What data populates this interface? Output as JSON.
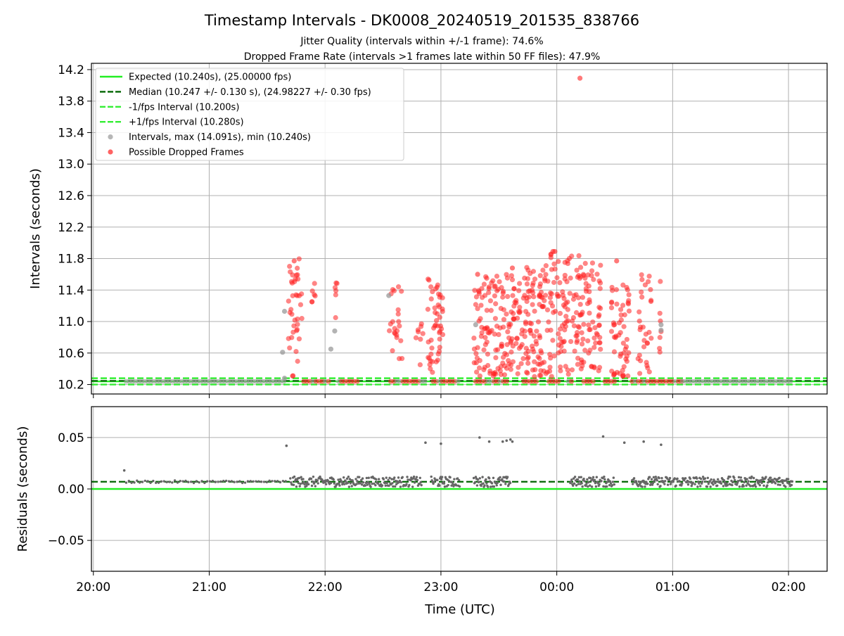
{
  "figure": {
    "title": "Timestamp Intervals - DK0008_20240519_201535_838766",
    "subtitle_1": "Jitter Quality (intervals within +/-1 frame): 74.6%",
    "subtitle_2": "Dropped Frame Rate (intervals >1 frames late within 50 FF files): 47.9%",
    "xlabel": "Time (UTC)"
  },
  "colors": {
    "expected": "#22ee22",
    "median": "#006400",
    "fps_bounds": "#33ee33",
    "intervals": "#999999",
    "dropped": "#ff2020",
    "residuals": "#666666",
    "grid": "#b0b0b0"
  },
  "chart_data": [
    {
      "type": "scatter",
      "panel": "top",
      "ylabel": "Intervals (seconds)",
      "xlim": [
        "20:00",
        "02:20"
      ],
      "ylim": [
        10.08,
        14.28
      ],
      "x_ticks": [
        "20:00",
        "21:00",
        "22:00",
        "23:00",
        "00:00",
        "01:00",
        "02:00"
      ],
      "y_ticks": [
        10.2,
        10.6,
        11.0,
        11.4,
        11.8,
        12.2,
        12.6,
        13.0,
        13.4,
        13.8,
        14.2
      ],
      "y_tick_labels": [
        "10.2",
        "10.6",
        "11.0",
        "11.4",
        "11.8",
        "12.2",
        "12.6",
        "13.0",
        "13.4",
        "13.8",
        "14.2"
      ],
      "grid": true,
      "legend_position": "top-left",
      "legend": [
        {
          "label": "Expected (10.240s), (25.00000 fps)",
          "style": "solid",
          "color_key": "expected"
        },
        {
          "label": "Median (10.247 +/- 0.130 s), (24.98227 +/- 0.30 fps)",
          "style": "dashed",
          "color_key": "median"
        },
        {
          "label": "-1/fps Interval (10.200s)",
          "style": "dashed",
          "color_key": "fps_bounds"
        },
        {
          "label": "+1/fps Interval (10.280s)",
          "style": "dashed",
          "color_key": "fps_bounds"
        },
        {
          "label": "Intervals, max (14.091s), min (10.240s)",
          "style": "marker",
          "color_key": "intervals"
        },
        {
          "label": "Possible Dropped Frames",
          "style": "marker",
          "color_key": "dropped"
        }
      ],
      "reference_lines": {
        "expected": 10.24,
        "median": 10.247,
        "minus_1fps": 10.2,
        "plus_1fps": 10.28
      },
      "baseline_interval": 10.24,
      "baseline_spans": [
        [
          "20:17",
          "21:40"
        ],
        [
          "21:49",
          "22:02"
        ],
        [
          "22:07",
          "22:18"
        ],
        [
          "22:34",
          "22:52"
        ],
        [
          "22:56",
          "23:10"
        ],
        [
          "23:18",
          "23:34"
        ],
        [
          "23:43",
          "23:50"
        ],
        [
          "23:56",
          "00:01"
        ],
        [
          "00:06",
          "00:08"
        ],
        [
          "00:14",
          "00:19"
        ],
        [
          "00:25",
          "00:31"
        ],
        [
          "00:39",
          "01:05"
        ],
        [
          "01:05",
          "02:02"
        ]
      ],
      "dropped_clusters": [
        {
          "start": "21:41",
          "end": "21:48",
          "ymin": 10.3,
          "ymax": 11.8,
          "count": 38
        },
        {
          "start": "21:53",
          "end": "21:55",
          "ymin": 11.2,
          "ymax": 11.6,
          "count": 6
        },
        {
          "start": "22:05",
          "end": "22:07",
          "ymin": 10.9,
          "ymax": 11.5,
          "count": 6
        },
        {
          "start": "22:33",
          "end": "22:40",
          "ymin": 10.5,
          "ymax": 11.45,
          "count": 22
        },
        {
          "start": "22:47",
          "end": "22:51",
          "ymin": 10.4,
          "ymax": 11.0,
          "count": 8
        },
        {
          "start": "22:53",
          "end": "23:01",
          "ymin": 10.35,
          "ymax": 11.55,
          "count": 48
        },
        {
          "start": "23:17",
          "end": "23:36",
          "ymin": 10.3,
          "ymax": 11.6,
          "count": 110
        },
        {
          "start": "23:36",
          "end": "23:53",
          "ymin": 10.3,
          "ymax": 11.7,
          "count": 120
        },
        {
          "start": "23:53",
          "end": "00:12",
          "ymin": 10.3,
          "ymax": 11.9,
          "count": 110
        },
        {
          "start": "00:12",
          "end": "00:23",
          "ymin": 10.3,
          "ymax": 11.8,
          "count": 70
        },
        {
          "start": "00:28",
          "end": "00:38",
          "ymin": 10.3,
          "ymax": 11.5,
          "count": 55
        },
        {
          "start": "00:42",
          "end": "00:49",
          "ymin": 10.3,
          "ymax": 11.6,
          "count": 30
        },
        {
          "start": "00:53",
          "end": "00:54",
          "ymin": 10.5,
          "ymax": 11.55,
          "count": 7
        }
      ],
      "dropped_extra_points": [
        {
          "x": "21:44",
          "y": 11.77
        },
        {
          "x": "00:12",
          "y": 14.091
        },
        {
          "x": "00:31",
          "y": 11.77
        },
        {
          "x": "23:58",
          "y": 11.89
        },
        {
          "x": "23:59",
          "y": 11.89
        },
        {
          "x": "23:37",
          "y": 11.68
        },
        {
          "x": "23:19",
          "y": 11.6
        }
      ],
      "interval_extra_points": [
        {
          "x": "21:38",
          "y": 10.61
        },
        {
          "x": "21:39",
          "y": 11.13
        },
        {
          "x": "22:03",
          "y": 10.65
        },
        {
          "x": "22:05",
          "y": 10.88
        },
        {
          "x": "22:33",
          "y": 11.33
        },
        {
          "x": "23:18",
          "y": 10.96
        },
        {
          "x": "00:54",
          "y": 10.89
        },
        {
          "x": "00:54",
          "y": 10.96
        },
        {
          "x": "21:39",
          "y": 10.28
        }
      ]
    },
    {
      "type": "scatter",
      "panel": "bottom",
      "ylabel": "Residuals (seconds)",
      "xlim": [
        "20:00",
        "02:20"
      ],
      "ylim": [
        -0.08,
        0.08
      ],
      "x_ticks": [
        "20:00",
        "21:00",
        "22:00",
        "23:00",
        "00:00",
        "01:00",
        "02:00"
      ],
      "x_tick_labels": [
        "20:00",
        "21:00",
        "22:00",
        "23:00",
        "00:00",
        "01:00",
        "02:00"
      ],
      "y_ticks": [
        -0.05,
        0.0,
        0.05
      ],
      "y_tick_labels": [
        "−0.05",
        "0.00",
        "0.05"
      ],
      "grid": true,
      "reference_lines": {
        "expected": 0.0,
        "median": 0.007
      },
      "baseline_residual": 0.007,
      "residual_spans": [
        [
          "20:17",
          "21:40"
        ],
        [
          "21:42",
          "22:50"
        ],
        [
          "22:55",
          "23:10"
        ],
        [
          "23:17",
          "23:36"
        ],
        [
          "00:07",
          "00:30"
        ],
        [
          "00:39",
          "02:02"
        ]
      ],
      "outliers": [
        {
          "x": "20:16",
          "y": 0.018
        },
        {
          "x": "21:40",
          "y": 0.042
        },
        {
          "x": "22:52",
          "y": 0.045
        },
        {
          "x": "23:00",
          "y": 0.044
        },
        {
          "x": "23:20",
          "y": 0.05
        },
        {
          "x": "23:25",
          "y": 0.046
        },
        {
          "x": "23:32",
          "y": 0.046
        },
        {
          "x": "23:34",
          "y": 0.047
        },
        {
          "x": "23:36",
          "y": 0.048
        },
        {
          "x": "23:37",
          "y": 0.046
        },
        {
          "x": "00:24",
          "y": 0.051
        },
        {
          "x": "00:35",
          "y": 0.045
        },
        {
          "x": "00:45",
          "y": 0.046
        },
        {
          "x": "00:54",
          "y": 0.043
        }
      ]
    }
  ]
}
